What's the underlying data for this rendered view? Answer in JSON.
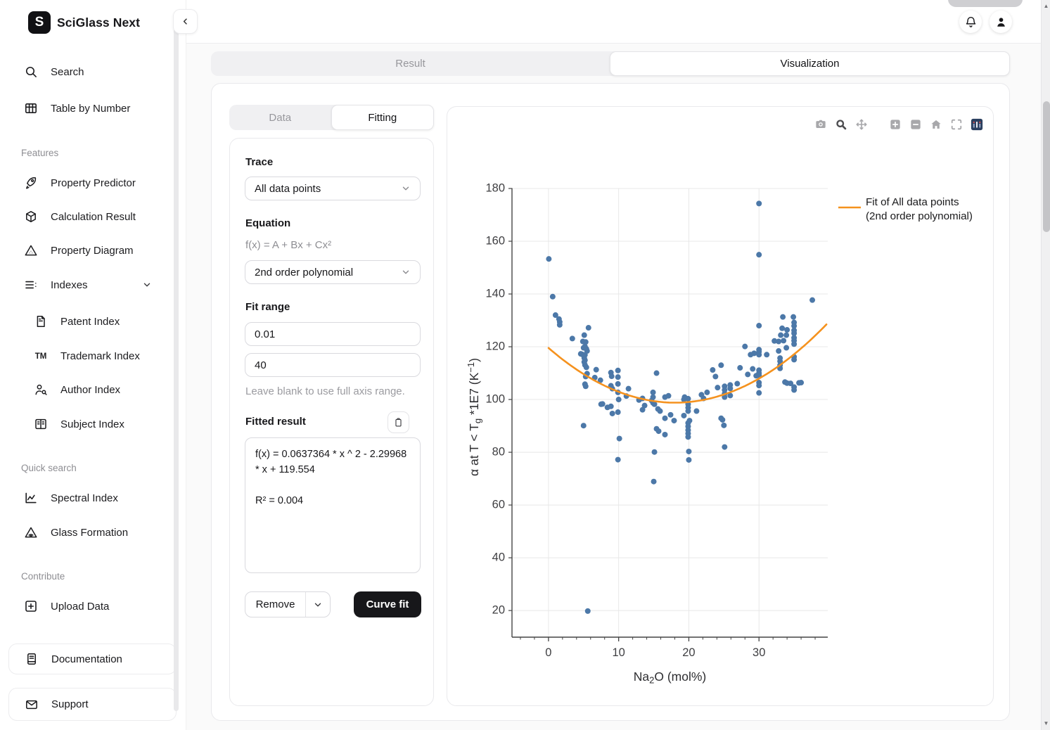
{
  "app": {
    "title": "SciGlass Next",
    "logo_letter": "S"
  },
  "tabs": {
    "result": "Result",
    "visualization": "Visualization"
  },
  "sidebar": {
    "top": [
      {
        "label": "Search"
      },
      {
        "label": "Table by Number"
      }
    ],
    "features_title": "Features",
    "features": [
      {
        "label": "Property Predictor"
      },
      {
        "label": "Calculation Result"
      },
      {
        "label": "Property Diagram"
      },
      {
        "label": "Indexes"
      }
    ],
    "indexes_children": [
      {
        "label": "Patent Index"
      },
      {
        "label": "Trademark Index"
      },
      {
        "label": "Author Index"
      },
      {
        "label": "Subject Index"
      }
    ],
    "quick_title": "Quick search",
    "quick": [
      {
        "label": "Spectral Index"
      },
      {
        "label": "Glass Formation"
      }
    ],
    "contribute_title": "Contribute",
    "contribute": [
      {
        "label": "Upload Data"
      }
    ],
    "footer": [
      {
        "label": "Documentation"
      },
      {
        "label": "Support"
      }
    ]
  },
  "panel": {
    "tab_data": "Data",
    "tab_fitting": "Fitting",
    "trace_label": "Trace",
    "trace_value": "All data points",
    "equation_label": "Equation",
    "equation_formula": "f(x) = A + Bx + Cx²",
    "equation_value": "2nd order polynomial",
    "fit_range_label": "Fit range",
    "fit_min": "0.01",
    "fit_max": "40",
    "fit_help": "Leave blank to use full axis range.",
    "fitted_result_label": "Fitted result",
    "fitted_fx": "f(x) = 0.0637364 * x ^ 2 - 2.29968 * x + 119.554",
    "fitted_r2": "R² = 0.004",
    "remove_label": "Remove",
    "curve_fit_label": "Curve fit"
  },
  "chart_data": {
    "type": "scatter",
    "xlabel": "Na₂O (mol%)",
    "ylabel": "α at T < Tg *1E7 (K⁻¹)",
    "xlabel_parts": [
      {
        "t": "Na"
      },
      {
        "t": "2",
        "sub": true
      },
      {
        "t": "O (mol%)"
      }
    ],
    "ylabel_parts": [
      {
        "t": "α at T < T"
      },
      {
        "t": "g",
        "sub": true
      },
      {
        "t": " *1E7 (K"
      },
      {
        "t": "−1",
        "sup": true
      },
      {
        "t": ")"
      }
    ],
    "xlim": [
      -5.2,
      39.8
    ],
    "ylim": [
      9.9,
      180
    ],
    "x_ticks": [
      0,
      10,
      20,
      30
    ],
    "x_minor_step": 2,
    "y_ticks": [
      20,
      40,
      60,
      80,
      100,
      120,
      140,
      160,
      180
    ],
    "grid": true,
    "legend_position": "right-top",
    "legend_lines": [
      "Fit of All data points",
      "(2nd order polynomial)"
    ],
    "colors": {
      "points": "#4c78a8",
      "fit": "#f5921e",
      "grid": "#e8e8e8",
      "axis": "#444444",
      "tick_label": "#3f3f42"
    },
    "series": [
      {
        "name": "All data points",
        "type": "scatter",
        "color": "#4c78a8",
        "points": [
          [
            0.05,
            153.3
          ],
          [
            0.6,
            139
          ],
          [
            1,
            132
          ],
          [
            1.5,
            130.5
          ],
          [
            1.6,
            129.4
          ],
          [
            1.6,
            128.3
          ],
          [
            3.4,
            123.1
          ],
          [
            5.7,
            127.2
          ],
          [
            5.1,
            124.4
          ],
          [
            4.9,
            122
          ],
          [
            5.3,
            121.8
          ],
          [
            5.2,
            120.1
          ],
          [
            5,
            119.6
          ],
          [
            5.4,
            119.2
          ],
          [
            5.5,
            118.4
          ],
          [
            4.6,
            117.3
          ],
          [
            4.8,
            117.1
          ],
          [
            5.2,
            116.9
          ],
          [
            5.1,
            115.7
          ],
          [
            5.2,
            114.9
          ],
          [
            5.1,
            114.2
          ],
          [
            5.2,
            113.1
          ],
          [
            5.4,
            112.2
          ],
          [
            5.5,
            109.8
          ],
          [
            5.3,
            108.7
          ],
          [
            5.2,
            105.8
          ],
          [
            5.3,
            105
          ],
          [
            5,
            90.1
          ],
          [
            5.6,
            19.8
          ],
          [
            6.8,
            111.3
          ],
          [
            6.6,
            108.3
          ],
          [
            7.4,
            107.3
          ],
          [
            7.5,
            98.2
          ],
          [
            7.7,
            98.3
          ],
          [
            8.4,
            97
          ],
          [
            8.9,
            110.2
          ],
          [
            9,
            108.8
          ],
          [
            8.9,
            105.2
          ],
          [
            9.1,
            104.1
          ],
          [
            8.9,
            97.4
          ],
          [
            9.1,
            94.7
          ],
          [
            9.9,
            111
          ],
          [
            9.9,
            108.5
          ],
          [
            9.9,
            105.9
          ],
          [
            9.9,
            102.7
          ],
          [
            10,
            100
          ],
          [
            9.9,
            95.2
          ],
          [
            10.1,
            85.2
          ],
          [
            9.9,
            77.2
          ],
          [
            11.1,
            101.3
          ],
          [
            11.4,
            104.1
          ],
          [
            12.9,
            99.8
          ],
          [
            13.4,
            100.4
          ],
          [
            13.4,
            96.1
          ],
          [
            13.7,
            97.7
          ],
          [
            14.7,
            99.6
          ],
          [
            14.9,
            102.7
          ],
          [
            14.9,
            100.9
          ],
          [
            14.9,
            98.7
          ],
          [
            15.1,
            98.2
          ],
          [
            15.4,
            110
          ],
          [
            15.6,
            96.4
          ],
          [
            15.9,
            95.6
          ],
          [
            15.4,
            88.9
          ],
          [
            15.7,
            88
          ],
          [
            15.1,
            80.1
          ],
          [
            15,
            68.9
          ],
          [
            16.6,
            100.9
          ],
          [
            16.6,
            92.9
          ],
          [
            16.6,
            86.7
          ],
          [
            17.1,
            101.4
          ],
          [
            17.4,
            94.2
          ],
          [
            17.9,
            92
          ],
          [
            19.3,
            93.9
          ],
          [
            19.3,
            100
          ],
          [
            19.4,
            100.9
          ],
          [
            19.9,
            100.3
          ],
          [
            19.9,
            98.2
          ],
          [
            19.9,
            96.9
          ],
          [
            19.9,
            95.6
          ],
          [
            20.1,
            92
          ],
          [
            19.9,
            91.1
          ],
          [
            19.9,
            89.8
          ],
          [
            19.9,
            88.4
          ],
          [
            19.9,
            87.1
          ],
          [
            19.9,
            85.8
          ],
          [
            20,
            80.3
          ],
          [
            20,
            77.1
          ],
          [
            21.1,
            95.6
          ],
          [
            21.8,
            101.8
          ],
          [
            22.1,
            100.4
          ],
          [
            22.6,
            102.7
          ],
          [
            23.4,
            111.2
          ],
          [
            23.8,
            108.7
          ],
          [
            24.1,
            104.5
          ],
          [
            24.6,
            113
          ],
          [
            24.6,
            92.9
          ],
          [
            24.8,
            92.3
          ],
          [
            25.1,
            105
          ],
          [
            25.1,
            103.6
          ],
          [
            25.1,
            102.2
          ],
          [
            25.1,
            100.9
          ],
          [
            25,
            90.2
          ],
          [
            25.1,
            82
          ],
          [
            25.9,
            105.5
          ],
          [
            25.9,
            104.2
          ],
          [
            25.9,
            101.5
          ],
          [
            26.9,
            106
          ],
          [
            27.3,
            112
          ],
          [
            28,
            120.1
          ],
          [
            28.4,
            109.5
          ],
          [
            28.8,
            117
          ],
          [
            29.1,
            111.6
          ],
          [
            29.3,
            117.5
          ],
          [
            29.6,
            109
          ],
          [
            30,
            174.3
          ],
          [
            30,
            154.9
          ],
          [
            30,
            128
          ],
          [
            30,
            118.9
          ],
          [
            30,
            118.1
          ],
          [
            30,
            117
          ],
          [
            30,
            111.1
          ],
          [
            30,
            110
          ],
          [
            30,
            109.1
          ],
          [
            30,
            106.4
          ],
          [
            30,
            105.3
          ],
          [
            30,
            102.5
          ],
          [
            31.1,
            117
          ],
          [
            32.2,
            122.2
          ],
          [
            32.8,
            122
          ],
          [
            32.8,
            118.4
          ],
          [
            33,
            115.7
          ],
          [
            33,
            114.5
          ],
          [
            33,
            113
          ],
          [
            33,
            111.8
          ],
          [
            33.1,
            124.4
          ],
          [
            33.3,
            127
          ],
          [
            33.4,
            131.3
          ],
          [
            33.5,
            122.3
          ],
          [
            33.7,
            106.6
          ],
          [
            33.9,
            124.4
          ],
          [
            33.9,
            119.6
          ],
          [
            34,
            126.4
          ],
          [
            34,
            106.2
          ],
          [
            34.5,
            106.1
          ],
          [
            34.9,
            131.3
          ],
          [
            35,
            129.2
          ],
          [
            35,
            127.9
          ],
          [
            35,
            126.2
          ],
          [
            35,
            125.1
          ],
          [
            35,
            123.4
          ],
          [
            35,
            122.3
          ],
          [
            35,
            121
          ],
          [
            35,
            116.2
          ],
          [
            35,
            115.1
          ],
          [
            35,
            104.7
          ],
          [
            35,
            103.6
          ],
          [
            35.7,
            106.3
          ],
          [
            36,
            106.4
          ],
          [
            37.6,
            137.7
          ]
        ]
      },
      {
        "name": "Fit of All data points (2nd order polynomial)",
        "type": "line",
        "color": "#f5921e",
        "fit": {
          "A": 119.554,
          "B": -2.29968,
          "C": 0.0637364,
          "x_range": [
            0.01,
            39.8
          ]
        }
      }
    ]
  }
}
